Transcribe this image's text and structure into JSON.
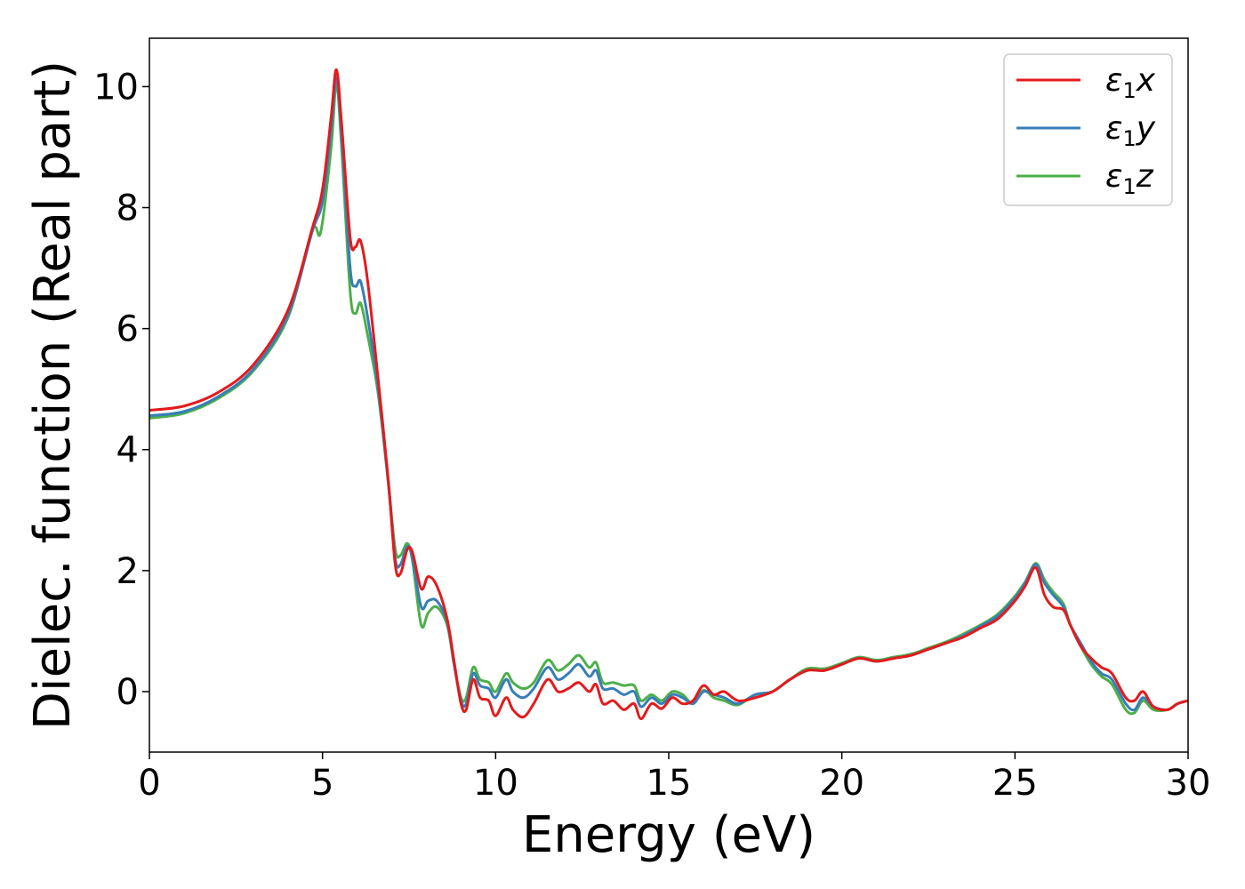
{
  "chart_data": {
    "type": "line",
    "xlabel": "Energy (eV)",
    "ylabel": "Dielec. function (Real part)",
    "xlim": [
      0,
      30
    ],
    "ylim": [
      -1.0,
      10.8
    ],
    "xticks": [
      0,
      5,
      10,
      15,
      20,
      25,
      30
    ],
    "yticks": [
      0,
      2,
      4,
      6,
      8,
      10
    ],
    "grid": false,
    "legend_position": "top-right",
    "series": [
      {
        "name": "ε₁x",
        "legend_base": "ε",
        "legend_sub": "1",
        "legend_tail": "x",
        "color": "#e41a1c",
        "points": [
          [
            0,
            4.65
          ],
          [
            1,
            4.72
          ],
          [
            2,
            4.95
          ],
          [
            3,
            5.4
          ],
          [
            4,
            6.3
          ],
          [
            4.7,
            7.65
          ],
          [
            5.0,
            8.3
          ],
          [
            5.25,
            9.5
          ],
          [
            5.4,
            10.28
          ],
          [
            5.55,
            9.4
          ],
          [
            5.8,
            7.5
          ],
          [
            5.95,
            7.35
          ],
          [
            6.1,
            7.45
          ],
          [
            6.3,
            6.8
          ],
          [
            6.6,
            5.2
          ],
          [
            6.9,
            3.5
          ],
          [
            7.1,
            2.1
          ],
          [
            7.25,
            1.95
          ],
          [
            7.45,
            2.35
          ],
          [
            7.6,
            2.3
          ],
          [
            7.85,
            1.7
          ],
          [
            8.05,
            1.9
          ],
          [
            8.3,
            1.75
          ],
          [
            8.6,
            1.2
          ],
          [
            8.8,
            0.5
          ],
          [
            9.0,
            -0.2
          ],
          [
            9.15,
            -0.3
          ],
          [
            9.35,
            0.2
          ],
          [
            9.55,
            -0.1
          ],
          [
            9.8,
            -0.15
          ],
          [
            10.0,
            -0.4
          ],
          [
            10.3,
            -0.1
          ],
          [
            10.5,
            -0.3
          ],
          [
            10.8,
            -0.42
          ],
          [
            11.1,
            -0.2
          ],
          [
            11.5,
            0.2
          ],
          [
            11.8,
            0.0
          ],
          [
            12.1,
            0.05
          ],
          [
            12.4,
            0.15
          ],
          [
            12.7,
            0.0
          ],
          [
            12.9,
            0.12
          ],
          [
            13.1,
            -0.2
          ],
          [
            13.4,
            -0.15
          ],
          [
            13.7,
            -0.3
          ],
          [
            14.0,
            -0.2
          ],
          [
            14.2,
            -0.45
          ],
          [
            14.5,
            -0.2
          ],
          [
            14.8,
            -0.28
          ],
          [
            15.1,
            -0.1
          ],
          [
            15.4,
            -0.2
          ],
          [
            15.7,
            -0.15
          ],
          [
            16.0,
            0.1
          ],
          [
            16.3,
            -0.05
          ],
          [
            16.6,
            0.0
          ],
          [
            17.0,
            -0.15
          ],
          [
            17.5,
            -0.1
          ],
          [
            18.0,
            0.0
          ],
          [
            18.5,
            0.2
          ],
          [
            19.0,
            0.35
          ],
          [
            19.5,
            0.35
          ],
          [
            20.0,
            0.45
          ],
          [
            20.5,
            0.55
          ],
          [
            21.0,
            0.5
          ],
          [
            21.5,
            0.55
          ],
          [
            22.0,
            0.6
          ],
          [
            22.5,
            0.7
          ],
          [
            23.0,
            0.8
          ],
          [
            23.5,
            0.9
          ],
          [
            24.0,
            1.05
          ],
          [
            24.5,
            1.2
          ],
          [
            25.0,
            1.5
          ],
          [
            25.3,
            1.75
          ],
          [
            25.6,
            2.05
          ],
          [
            25.85,
            1.6
          ],
          [
            26.1,
            1.4
          ],
          [
            26.4,
            1.35
          ],
          [
            26.6,
            1.1
          ],
          [
            26.9,
            0.75
          ],
          [
            27.2,
            0.55
          ],
          [
            27.5,
            0.4
          ],
          [
            27.8,
            0.3
          ],
          [
            28.2,
            -0.1
          ],
          [
            28.45,
            -0.15
          ],
          [
            28.7,
            0.0
          ],
          [
            29.0,
            -0.25
          ],
          [
            29.4,
            -0.3
          ],
          [
            29.7,
            -0.2
          ],
          [
            30.0,
            -0.15
          ]
        ]
      },
      {
        "name": "ε₁y",
        "legend_base": "ε",
        "legend_sub": "1",
        "legend_tail": "y",
        "color": "#377eb8",
        "points": [
          [
            0,
            4.56
          ],
          [
            1,
            4.63
          ],
          [
            2,
            4.88
          ],
          [
            3,
            5.33
          ],
          [
            4,
            6.22
          ],
          [
            4.7,
            7.6
          ],
          [
            5.0,
            8.1
          ],
          [
            5.25,
            9.3
          ],
          [
            5.4,
            10.15
          ],
          [
            5.55,
            9.2
          ],
          [
            5.8,
            7.0
          ],
          [
            5.95,
            6.7
          ],
          [
            6.1,
            6.78
          ],
          [
            6.3,
            6.2
          ],
          [
            6.6,
            5.05
          ],
          [
            6.9,
            3.45
          ],
          [
            7.1,
            2.2
          ],
          [
            7.25,
            2.1
          ],
          [
            7.45,
            2.4
          ],
          [
            7.6,
            2.2
          ],
          [
            7.85,
            1.4
          ],
          [
            8.05,
            1.5
          ],
          [
            8.3,
            1.5
          ],
          [
            8.6,
            1.15
          ],
          [
            8.8,
            0.45
          ],
          [
            9.0,
            -0.15
          ],
          [
            9.15,
            -0.2
          ],
          [
            9.35,
            0.3
          ],
          [
            9.55,
            0.1
          ],
          [
            9.8,
            0.05
          ],
          [
            10.0,
            -0.1
          ],
          [
            10.3,
            0.2
          ],
          [
            10.5,
            0.0
          ],
          [
            10.8,
            -0.1
          ],
          [
            11.1,
            0.05
          ],
          [
            11.5,
            0.4
          ],
          [
            11.8,
            0.2
          ],
          [
            12.1,
            0.3
          ],
          [
            12.4,
            0.45
          ],
          [
            12.7,
            0.25
          ],
          [
            12.9,
            0.35
          ],
          [
            13.1,
            0.05
          ],
          [
            13.4,
            0.05
          ],
          [
            13.7,
            -0.05
          ],
          [
            14.0,
            0.0
          ],
          [
            14.2,
            -0.25
          ],
          [
            14.5,
            -0.1
          ],
          [
            14.8,
            -0.2
          ],
          [
            15.1,
            -0.05
          ],
          [
            15.4,
            -0.1
          ],
          [
            15.7,
            -0.2
          ],
          [
            16.0,
            0.0
          ],
          [
            16.3,
            -0.05
          ],
          [
            16.6,
            -0.1
          ],
          [
            17.0,
            -0.2
          ],
          [
            17.5,
            -0.05
          ],
          [
            18.0,
            0.0
          ],
          [
            18.5,
            0.2
          ],
          [
            19.0,
            0.35
          ],
          [
            19.5,
            0.35
          ],
          [
            20.0,
            0.45
          ],
          [
            20.5,
            0.55
          ],
          [
            21.0,
            0.5
          ],
          [
            21.5,
            0.55
          ],
          [
            22.0,
            0.6
          ],
          [
            22.5,
            0.7
          ],
          [
            23.0,
            0.8
          ],
          [
            23.5,
            0.92
          ],
          [
            24.0,
            1.08
          ],
          [
            24.5,
            1.25
          ],
          [
            25.0,
            1.55
          ],
          [
            25.3,
            1.8
          ],
          [
            25.6,
            2.1
          ],
          [
            25.85,
            1.8
          ],
          [
            26.1,
            1.6
          ],
          [
            26.4,
            1.4
          ],
          [
            26.6,
            1.1
          ],
          [
            26.9,
            0.8
          ],
          [
            27.2,
            0.5
          ],
          [
            27.5,
            0.3
          ],
          [
            27.8,
            0.2
          ],
          [
            28.2,
            -0.2
          ],
          [
            28.45,
            -0.3
          ],
          [
            28.7,
            -0.1
          ],
          [
            29.0,
            -0.25
          ],
          [
            29.4,
            -0.3
          ],
          [
            29.7,
            -0.2
          ],
          [
            30.0,
            -0.15
          ]
        ]
      },
      {
        "name": "ε₁z",
        "legend_base": "ε",
        "legend_sub": "1",
        "legend_tail": "z",
        "color": "#4daf4a",
        "points": [
          [
            0,
            4.52
          ],
          [
            1,
            4.6
          ],
          [
            2,
            4.85
          ],
          [
            3,
            5.3
          ],
          [
            4,
            6.18
          ],
          [
            4.7,
            7.62
          ],
          [
            4.95,
            7.6
          ],
          [
            5.25,
            9.0
          ],
          [
            5.4,
            10.05
          ],
          [
            5.55,
            9.0
          ],
          [
            5.8,
            6.6
          ],
          [
            5.95,
            6.25
          ],
          [
            6.1,
            6.42
          ],
          [
            6.3,
            5.9
          ],
          [
            6.6,
            4.95
          ],
          [
            6.9,
            3.45
          ],
          [
            7.1,
            2.35
          ],
          [
            7.25,
            2.25
          ],
          [
            7.45,
            2.45
          ],
          [
            7.6,
            2.15
          ],
          [
            7.85,
            1.1
          ],
          [
            8.05,
            1.3
          ],
          [
            8.3,
            1.4
          ],
          [
            8.6,
            1.1
          ],
          [
            8.8,
            0.45
          ],
          [
            9.0,
            -0.1
          ],
          [
            9.15,
            -0.1
          ],
          [
            9.35,
            0.4
          ],
          [
            9.55,
            0.2
          ],
          [
            9.8,
            0.15
          ],
          [
            10.0,
            0.0
          ],
          [
            10.3,
            0.3
          ],
          [
            10.5,
            0.15
          ],
          [
            10.8,
            0.05
          ],
          [
            11.1,
            0.15
          ],
          [
            11.5,
            0.52
          ],
          [
            11.8,
            0.35
          ],
          [
            12.1,
            0.45
          ],
          [
            12.4,
            0.6
          ],
          [
            12.7,
            0.4
          ],
          [
            12.9,
            0.48
          ],
          [
            13.1,
            0.15
          ],
          [
            13.4,
            0.15
          ],
          [
            13.7,
            0.1
          ],
          [
            14.0,
            0.1
          ],
          [
            14.2,
            -0.15
          ],
          [
            14.5,
            -0.05
          ],
          [
            14.8,
            -0.15
          ],
          [
            15.1,
            0.0
          ],
          [
            15.4,
            -0.05
          ],
          [
            15.7,
            -0.2
          ],
          [
            16.0,
            0.02
          ],
          [
            16.3,
            -0.1
          ],
          [
            16.6,
            -0.15
          ],
          [
            17.0,
            -0.22
          ],
          [
            17.5,
            -0.05
          ],
          [
            18.0,
            0.0
          ],
          [
            18.5,
            0.2
          ],
          [
            19.0,
            0.38
          ],
          [
            19.5,
            0.38
          ],
          [
            20.0,
            0.47
          ],
          [
            20.5,
            0.57
          ],
          [
            21.0,
            0.52
          ],
          [
            21.5,
            0.57
          ],
          [
            22.0,
            0.62
          ],
          [
            22.5,
            0.72
          ],
          [
            23.0,
            0.82
          ],
          [
            23.5,
            0.95
          ],
          [
            24.0,
            1.1
          ],
          [
            24.5,
            1.28
          ],
          [
            25.0,
            1.58
          ],
          [
            25.3,
            1.82
          ],
          [
            25.6,
            2.12
          ],
          [
            25.85,
            1.85
          ],
          [
            26.1,
            1.65
          ],
          [
            26.4,
            1.45
          ],
          [
            26.6,
            1.1
          ],
          [
            26.9,
            0.75
          ],
          [
            27.2,
            0.45
          ],
          [
            27.5,
            0.25
          ],
          [
            27.8,
            0.12
          ],
          [
            28.2,
            -0.3
          ],
          [
            28.45,
            -0.35
          ],
          [
            28.7,
            -0.15
          ],
          [
            29.0,
            -0.3
          ],
          [
            29.4,
            -0.3
          ],
          [
            29.7,
            -0.2
          ],
          [
            30.0,
            -0.15
          ]
        ]
      }
    ]
  }
}
